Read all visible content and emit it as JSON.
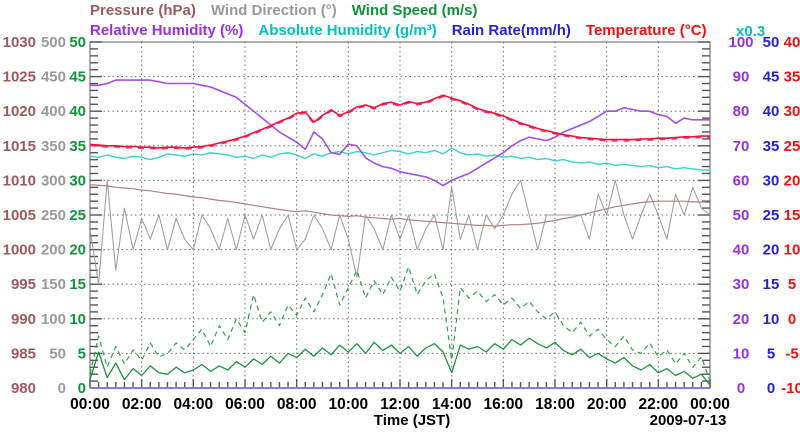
{
  "page": {
    "background": "#ffffff"
  },
  "legend": {
    "row1": [
      {
        "id": "pressure",
        "label": "Pressure (hPa)",
        "color": "#9e5a5a"
      },
      {
        "id": "wind-direction",
        "label": "Wind Direction (°)",
        "color": "#999999"
      },
      {
        "id": "wind-speed",
        "label": "Wind Speed (m/s)",
        "color": "#0e9439"
      }
    ],
    "row2": [
      {
        "id": "relative-humidity",
        "label": "Relative Humidity (%)",
        "color": "#9a2fe0"
      },
      {
        "id": "absolute-humidity",
        "label": "Absolute Humidity (g/m³)",
        "color": "#00c2c2"
      },
      {
        "id": "rain-rate",
        "label": "Rain Rate(mm/h)",
        "color": "#2323cf"
      },
      {
        "id": "temperature",
        "label": "Temperature (°C)",
        "color": "#ee1111"
      }
    ],
    "scale_note": {
      "label": "x0.3",
      "color": "#00c2c2"
    }
  },
  "x_axis": {
    "label": "Time (JST)",
    "date": "2009-07-13",
    "tick_labels": [
      "00:00",
      "02:00",
      "04:00",
      "06:00",
      "08:00",
      "10:00",
      "12:00",
      "14:00",
      "16:00",
      "18:00",
      "20:00",
      "22:00",
      "00:00"
    ]
  },
  "left_axes": [
    {
      "id": "pressure",
      "color": "#9e5a5a",
      "ticks": [
        "1030",
        "1025",
        "1020",
        "1015",
        "1010",
        "1005",
        "1000",
        "995",
        "990",
        "985",
        "980"
      ]
    },
    {
      "id": "wind_direction",
      "color": "#999999",
      "ticks": [
        "500",
        "450",
        "400",
        "350",
        "300",
        "250",
        "200",
        "150",
        "100",
        "50",
        "0"
      ]
    },
    {
      "id": "wind_speed",
      "color": "#0e9439",
      "ticks": [
        "50",
        "45",
        "40",
        "35",
        "30",
        "25",
        "20",
        "15",
        "10",
        "5",
        "0"
      ]
    }
  ],
  "right_axes": [
    {
      "id": "relative_humidity",
      "color": "#9a2fe0",
      "ticks": [
        "100",
        "90",
        "80",
        "70",
        "60",
        "50",
        "40",
        "30",
        "20",
        "10",
        "0"
      ]
    },
    {
      "id": "rain_rate",
      "color": "#2323cf",
      "ticks": [
        "50",
        "45",
        "40",
        "35",
        "30",
        "25",
        "20",
        "15",
        "10",
        "5",
        "0"
      ]
    },
    {
      "id": "temperature",
      "color": "#ee1111",
      "ticks": [
        "40",
        "35",
        "30",
        "25",
        "20",
        "15",
        "10",
        "5",
        "0",
        "-5",
        "-10"
      ]
    }
  ],
  "chart_data": {
    "type": "line",
    "title": "",
    "xlabel": "Time (JST)",
    "date": "2009-07-13",
    "grid": "dotted major grid, both directions",
    "x": {
      "unit": "hours",
      "start": 0,
      "end": 24,
      "step": 0.3333333
    },
    "axes": {
      "pressure": {
        "min": 980,
        "max": 1030,
        "unit": "hPa"
      },
      "wind_direction": {
        "min": 0,
        "max": 500,
        "unit": "deg"
      },
      "wind_speed": {
        "min": 0,
        "max": 50,
        "unit": "m/s"
      },
      "relative_humidity": {
        "min": 0,
        "max": 100,
        "unit": "%"
      },
      "rain_rate": {
        "min": 0,
        "max": 50,
        "unit": "mm/h"
      },
      "temperature": {
        "min": -10,
        "max": 40,
        "unit": "degC"
      },
      "absolute_humidity": {
        "min": 0,
        "max": 30,
        "unit": "g/m3",
        "note": "plotted on humidity axis scaled x0.3"
      }
    },
    "series": [
      {
        "name": "pressure",
        "axis": "pressure",
        "color": "#b08282",
        "width": 1.2,
        "values": [
          1009.4,
          1009.3,
          1009.2,
          1009.0,
          1008.9,
          1008.8,
          1008.6,
          1008.5,
          1008.3,
          1008.1,
          1008.0,
          1007.8,
          1007.6,
          1007.5,
          1007.3,
          1007.1,
          1007.0,
          1006.8,
          1006.6,
          1006.4,
          1006.2,
          1006.0,
          1005.8,
          1005.6,
          1005.5,
          1005.6,
          1005.4,
          1005.2,
          1005.0,
          1004.9,
          1004.8,
          1004.9,
          1004.7,
          1004.6,
          1004.5,
          1004.4,
          1004.5,
          1004.3,
          1004.2,
          1004.1,
          1004.0,
          1003.9,
          1003.8,
          1003.7,
          1003.6,
          1003.5,
          1003.5,
          1003.4,
          1003.5,
          1003.6,
          1003.6,
          1003.7,
          1003.8,
          1004.0,
          1004.2,
          1004.5,
          1004.7,
          1005.0,
          1005.3,
          1005.6,
          1005.9,
          1006.2,
          1006.4,
          1006.6,
          1006.8,
          1006.9,
          1007.0,
          1007.0,
          1007.0,
          1007.0,
          1006.9,
          1006.9,
          1006.8
        ]
      },
      {
        "name": "wind_direction",
        "axis": "wind_direction",
        "color": "#9a9a9a",
        "width": 1.0,
        "values": [
          230,
          150,
          300,
          170,
          260,
          200,
          245,
          215,
          250,
          200,
          245,
          215,
          200,
          250,
          230,
          200,
          245,
          200,
          250,
          215,
          250,
          200,
          230,
          250,
          200,
          215,
          250,
          230,
          200,
          250,
          215,
          160,
          250,
          230,
          200,
          250,
          215,
          250,
          200,
          230,
          250,
          200,
          290,
          215,
          250,
          200,
          250,
          230,
          250,
          280,
          300,
          250,
          200,
          250,
          250,
          250,
          250,
          250,
          215,
          280,
          250,
          300,
          250,
          215,
          250,
          280,
          250,
          215,
          280,
          250,
          290,
          260,
          250
        ]
      },
      {
        "name": "wind_gust",
        "axis": "wind_speed",
        "color": "#2aa34e",
        "width": 1.2,
        "dash": "5 4",
        "values": [
          2.0,
          7.5,
          3.0,
          6.0,
          3.5,
          5.5,
          4.0,
          6.5,
          4.5,
          5.0,
          6.5,
          5.5,
          7.0,
          8.5,
          6.0,
          9.0,
          7.0,
          10.0,
          8.0,
          13.5,
          9.5,
          11.0,
          9.0,
          12.0,
          10.5,
          13.0,
          11.0,
          13.5,
          16.5,
          12.0,
          14.5,
          17.0,
          13.0,
          15.5,
          13.5,
          16.0,
          14.0,
          17.5,
          13.5,
          15.5,
          16.5,
          13.0,
          4.0,
          14.5,
          13.0,
          14.0,
          12.5,
          13.5,
          12.0,
          13.0,
          11.5,
          12.5,
          11.0,
          10.0,
          11.0,
          9.0,
          8.0,
          9.5,
          7.5,
          8.5,
          7.0,
          6.0,
          7.5,
          5.5,
          5.0,
          6.5,
          4.5,
          5.5,
          3.5,
          5.0,
          3.0,
          4.5,
          1.0
        ]
      },
      {
        "name": "wind_speed",
        "axis": "wind_speed",
        "color": "#1c9440",
        "width": 1.3,
        "values": [
          1.2,
          5.2,
          1.5,
          3.6,
          1.2,
          2.8,
          1.8,
          3.2,
          2.2,
          2.0,
          3.0,
          2.2,
          2.6,
          3.4,
          2.4,
          3.2,
          2.6,
          3.8,
          3.0,
          4.2,
          3.4,
          4.6,
          3.6,
          5.0,
          4.4,
          5.6,
          4.6,
          5.8,
          4.8,
          6.2,
          5.2,
          6.4,
          5.0,
          6.6,
          5.4,
          6.2,
          5.0,
          6.0,
          4.6,
          5.8,
          6.4,
          5.2,
          2.2,
          6.2,
          5.6,
          6.0,
          5.2,
          6.4,
          5.6,
          7.0,
          6.2,
          7.2,
          6.4,
          5.8,
          6.6,
          5.4,
          4.8,
          5.6,
          4.4,
          5.0,
          4.2,
          3.6,
          4.4,
          3.2,
          2.6,
          3.4,
          2.2,
          2.8,
          1.8,
          2.4,
          1.4,
          2.0,
          0.4
        ]
      },
      {
        "name": "absolute_humidity",
        "axis": "absolute_humidity",
        "color": "#3ecfcf",
        "width": 1.4,
        "values": [
          20.1,
          20.0,
          20.2,
          20.0,
          19.9,
          20.1,
          20.0,
          19.8,
          20.0,
          20.3,
          20.2,
          20.1,
          20.3,
          20.2,
          20.4,
          20.3,
          20.2,
          20.0,
          20.1,
          19.9,
          20.2,
          20.0,
          20.3,
          20.4,
          20.2,
          19.9,
          20.3,
          20.1,
          20.4,
          20.5,
          20.3,
          20.5,
          20.4,
          20.2,
          20.4,
          20.6,
          20.5,
          20.3,
          20.5,
          20.4,
          20.6,
          20.3,
          20.8,
          20.4,
          20.2,
          20.3,
          20.1,
          20.2,
          20.0,
          20.1,
          19.9,
          20.0,
          19.8,
          19.9,
          19.7,
          19.8,
          19.6,
          19.5,
          19.6,
          19.4,
          19.5,
          19.3,
          19.4,
          19.3,
          19.2,
          19.3,
          19.1,
          19.2,
          19.0,
          19.1,
          19.0,
          18.9,
          18.9
        ]
      },
      {
        "name": "relative_humidity",
        "axis": "relative_humidity",
        "color": "#a44de8",
        "width": 1.6,
        "values": [
          87.5,
          87.5,
          88,
          89,
          89,
          89,
          89,
          89,
          88.5,
          88,
          88,
          88,
          88,
          87.5,
          87,
          86,
          85,
          84,
          82,
          80,
          78,
          76,
          74,
          72.5,
          71,
          69,
          74,
          72,
          68,
          67.5,
          70.5,
          70,
          66.5,
          65,
          64,
          63.5,
          62.5,
          62,
          61.5,
          61,
          60,
          58.5,
          60,
          61,
          62,
          63.5,
          65,
          66.5,
          68,
          70,
          71.5,
          72.5,
          72,
          71.5,
          72.5,
          74,
          75,
          76,
          77,
          78.5,
          80,
          80,
          81,
          80.5,
          80,
          80,
          79,
          78.5,
          76.5,
          78,
          77.5,
          77.5,
          77.5
        ]
      },
      {
        "name": "temperature",
        "axis": "temperature",
        "color": "#f2152e",
        "width": 1.6,
        "overlay_color": "#f326a0",
        "values": [
          25.2,
          25.1,
          25.0,
          25.0,
          24.9,
          24.9,
          24.8,
          24.8,
          24.7,
          24.8,
          24.8,
          24.7,
          24.8,
          24.9,
          25.1,
          25.4,
          25.7,
          26.0,
          26.4,
          26.9,
          27.4,
          27.9,
          28.5,
          29.0,
          29.7,
          29.9,
          28.4,
          29.4,
          30.2,
          29.4,
          29.9,
          30.6,
          30.9,
          30.5,
          31.1,
          31.3,
          30.9,
          31.4,
          31.1,
          31.3,
          31.8,
          32.3,
          31.9,
          31.5,
          31.0,
          30.4,
          30.0,
          29.7,
          29.3,
          28.8,
          28.3,
          27.9,
          27.5,
          27.2,
          26.9,
          26.6,
          26.4,
          26.2,
          26.1,
          26.0,
          25.9,
          25.9,
          25.9,
          25.9,
          26.0,
          26.0,
          26.1,
          26.1,
          26.2,
          26.3,
          26.3,
          26.4,
          26.4
        ]
      },
      {
        "name": "rain_rate",
        "axis": "rain_rate",
        "color": "#8080dc",
        "width": 2.0,
        "x_points": [
          0,
          24
        ],
        "values": [
          0,
          0
        ]
      }
    ]
  }
}
